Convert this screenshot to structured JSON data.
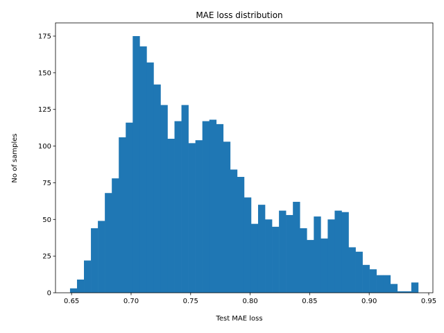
{
  "chart_data": {
    "type": "bar",
    "subtype": "histogram",
    "title": "MAE loss distribution",
    "xlabel": "Test MAE loss",
    "ylabel": "No of samples",
    "xlim": [
      0.6365,
      0.9535
    ],
    "ylim": [
      0,
      184
    ],
    "xticks": [
      0.65,
      0.7,
      0.75,
      0.8,
      0.85,
      0.9,
      0.95
    ],
    "xtick_labels": [
      "0.65",
      "0.70",
      "0.75",
      "0.80",
      "0.85",
      "0.90",
      "0.95"
    ],
    "yticks": [
      0,
      25,
      50,
      75,
      100,
      125,
      150,
      175
    ],
    "ytick_labels": [
      "0",
      "25",
      "50",
      "75",
      "100",
      "125",
      "150",
      "175"
    ],
    "bin_start": 0.6487,
    "bin_width": 0.00585,
    "values": [
      3,
      9,
      22,
      44,
      49,
      68,
      78,
      106,
      116,
      175,
      168,
      157,
      142,
      128,
      105,
      117,
      128,
      102,
      104,
      117,
      118,
      115,
      103,
      84,
      79,
      65,
      47,
      60,
      50,
      45,
      56,
      53,
      62,
      44,
      36,
      52,
      37,
      50,
      56,
      55,
      31,
      28,
      19,
      16,
      12,
      12,
      6,
      1,
      1,
      7
    ],
    "bar_color": "#1f77b4",
    "grid": false,
    "legend": "none"
  }
}
